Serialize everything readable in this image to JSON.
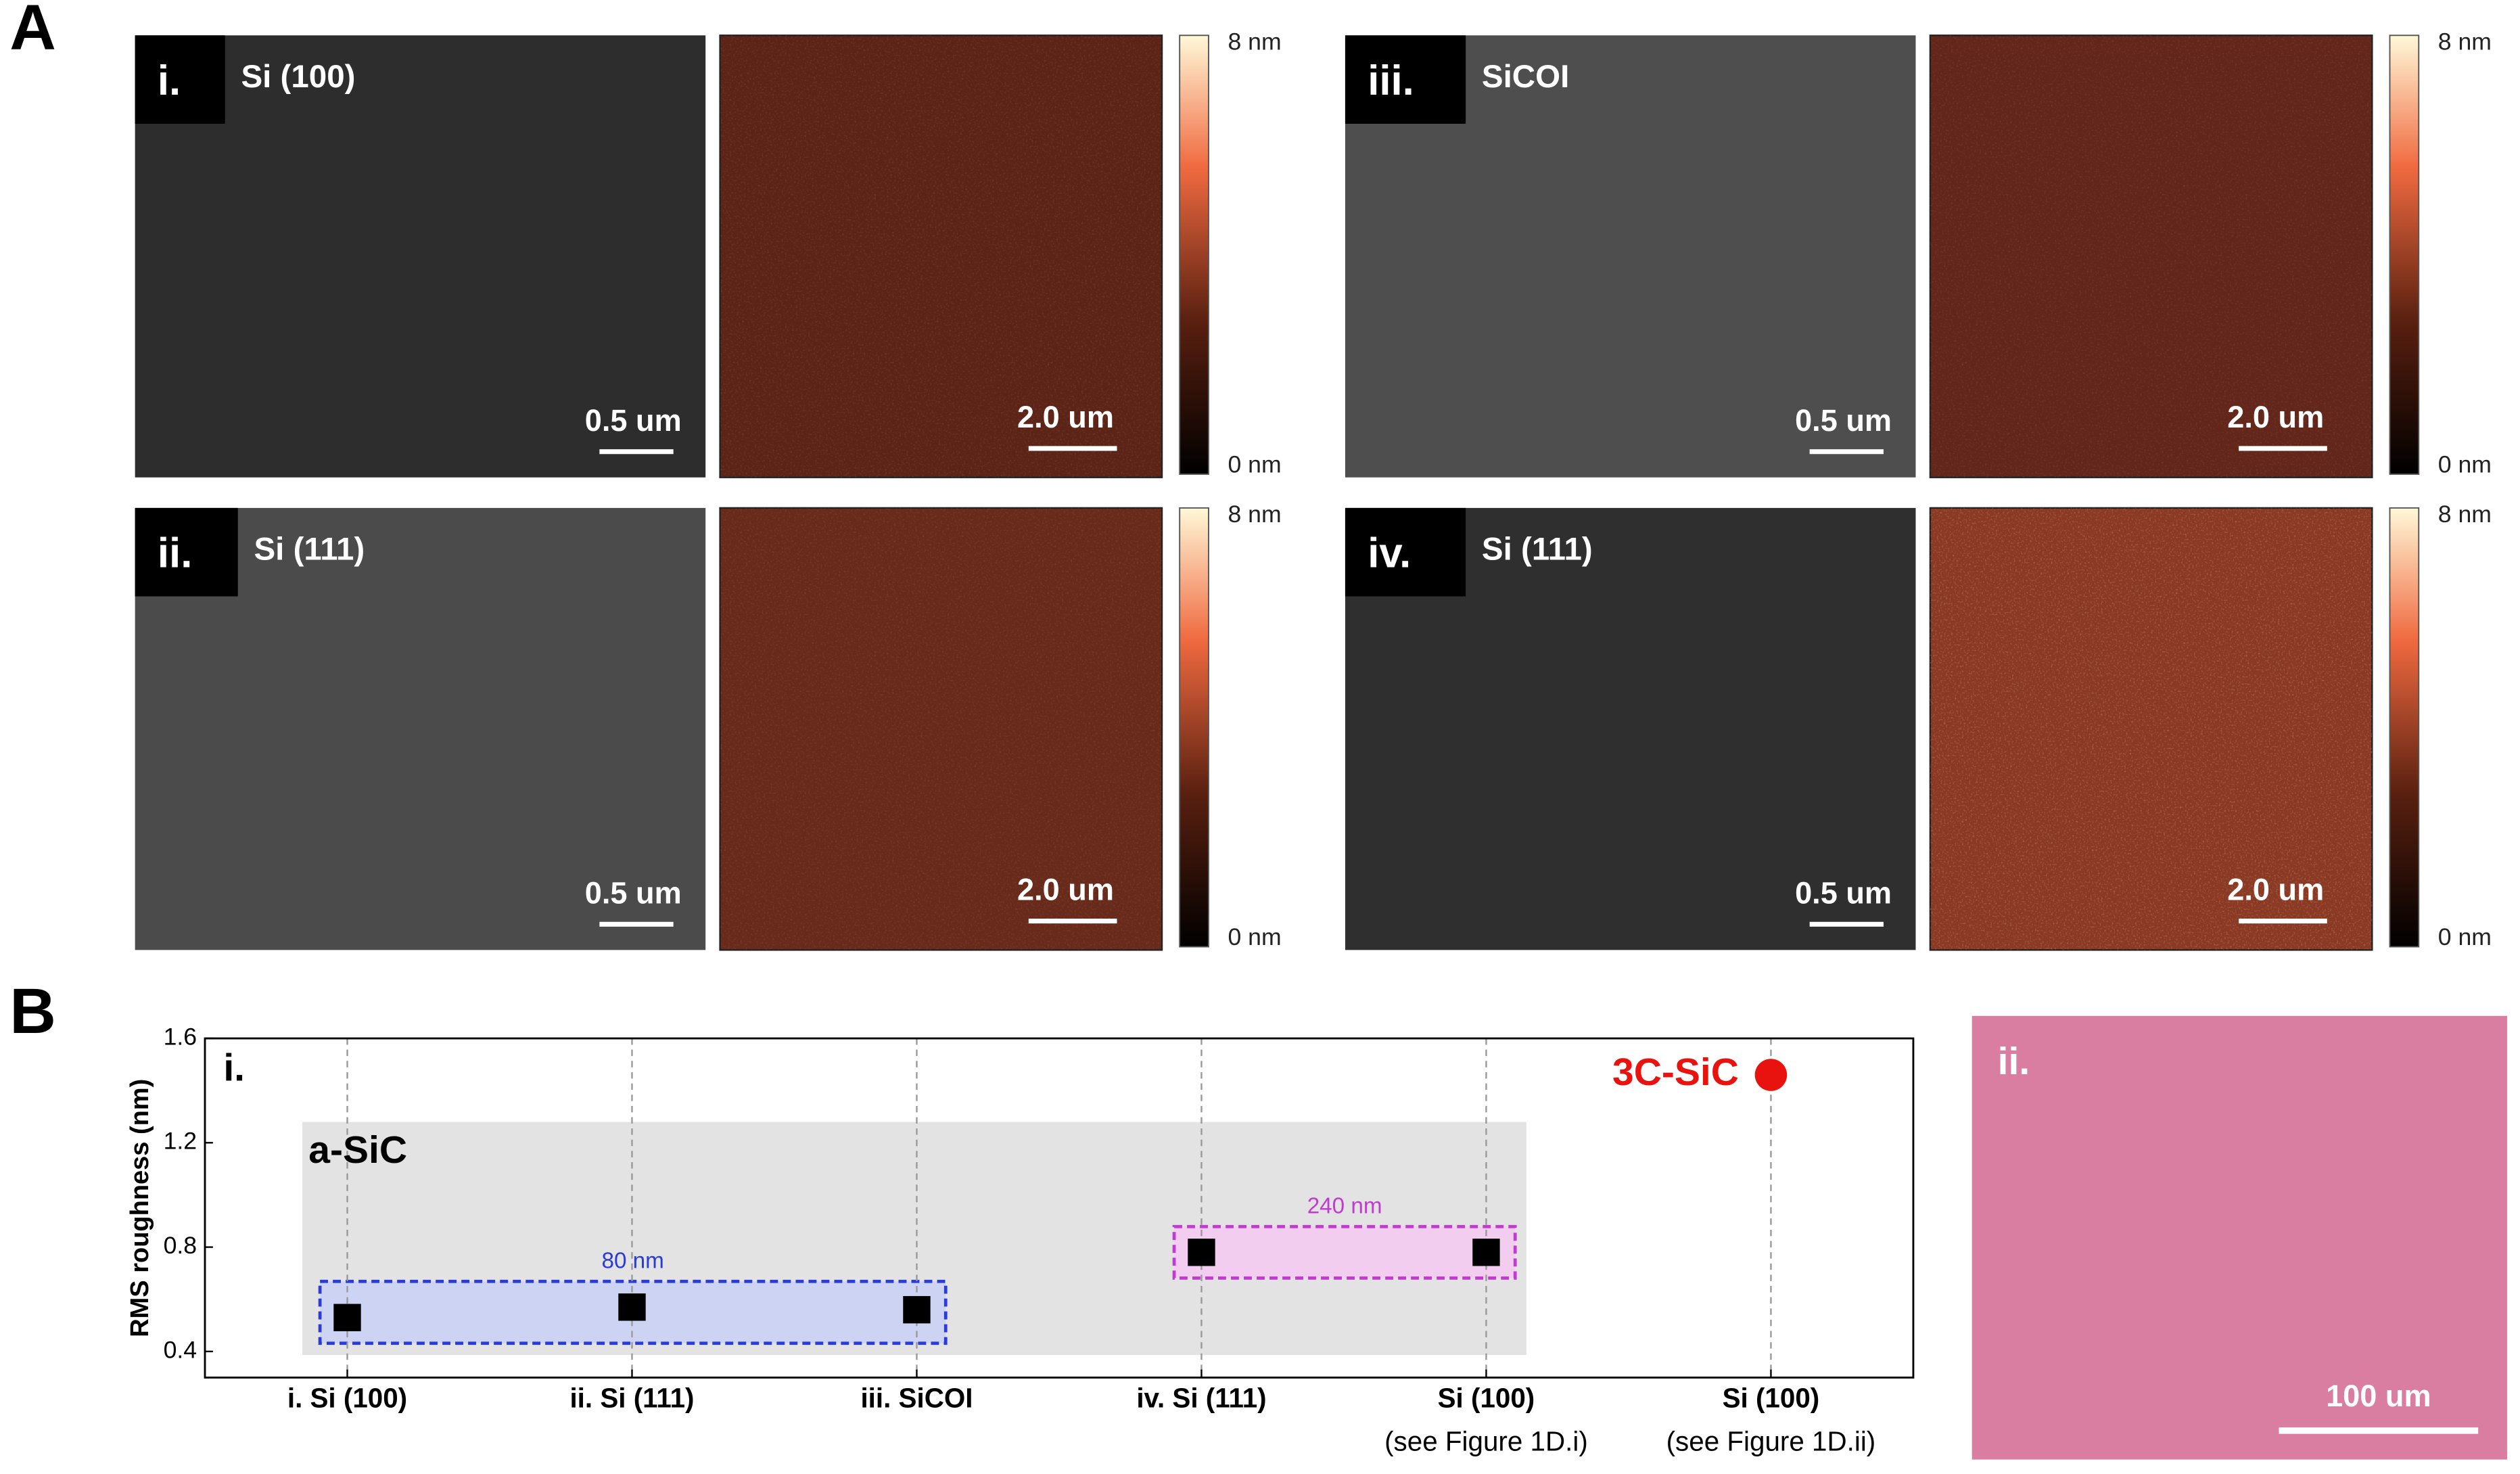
{
  "panel_labels": [
    "A",
    "B"
  ],
  "afm_panels": [
    {
      "label": "i.",
      "substrate": "Si (100)",
      "sem_scale": "0.5 um",
      "afm_scale": "2.0 um",
      "scale_max": "8 nm",
      "scale_min": "0 nm",
      "sem_color": "#2d2d2d",
      "afm_color": "#5c2417"
    },
    {
      "label": "ii.",
      "substrate": "Si (111)",
      "sem_scale": "0.5 um",
      "afm_scale": "2.0 um",
      "scale_max": "8 nm",
      "scale_min": "0 nm",
      "sem_color": "#4b4b4b",
      "afm_color": "#682a1a"
    },
    {
      "label": "iii.",
      "substrate": "SiCOI",
      "sem_scale": "0.5 um",
      "afm_scale": "2.0 um",
      "scale_max": "8 nm",
      "scale_min": "0 nm",
      "sem_color": "#4e4e4e",
      "afm_color": "#62261a"
    },
    {
      "label": "iv.",
      "substrate": "Si (111)",
      "sem_scale": "0.5 um",
      "afm_scale": "2.0 um",
      "scale_max": "8 nm",
      "scale_min": "0 nm",
      "sem_color": "#2f2f2f",
      "afm_color": "#8a3a24"
    }
  ],
  "chart_data": {
    "type": "scatter",
    "panel_label": "i.",
    "ylabel": "RMS roughness (nm)",
    "categories": [
      "i. Si (100)",
      "ii. Si (111)",
      "iii. SiCOI",
      "iv. Si (111)",
      "Si (100)",
      "Si (100)"
    ],
    "category_notes": [
      null,
      null,
      null,
      null,
      "(see Figure 1D.i)",
      "(see Figure 1D.ii)"
    ],
    "series": [
      {
        "name": "a-SiC",
        "color": "#000000",
        "marker": "square",
        "values": [
          0.53,
          0.57,
          0.56,
          0.78,
          0.78,
          null
        ]
      },
      {
        "name": "3C-SiC",
        "color": "#e8130f",
        "marker": "circle",
        "values": [
          null,
          null,
          null,
          null,
          null,
          1.46
        ]
      }
    ],
    "groups": [
      {
        "label": "80 nm",
        "start": 0,
        "end": 2,
        "color": "#2a3bd8",
        "fill": "#cdd4f3"
      },
      {
        "label": "240 nm",
        "start": 3,
        "end": 4,
        "color": "#c23bd0",
        "fill": "#f3cdf0"
      }
    ],
    "ylim": [
      0.3,
      1.6
    ],
    "yticks": [
      0.4,
      0.8,
      1.2,
      1.6
    ],
    "grid": true
  },
  "optical_image": {
    "label": "ii.",
    "scale": "100 um",
    "color": "#d97ea1"
  }
}
